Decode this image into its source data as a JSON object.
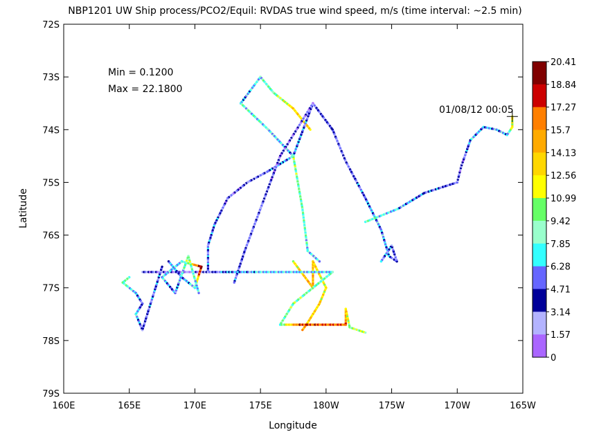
{
  "chart_data": {
    "type": "scatter",
    "title": "NBP1201 UW Ship process/PCO2/Equil: RVDAS true wind speed, m/s  (time interval: ~2.5 min)",
    "xlabel": "Longitude",
    "ylabel": "Latitude",
    "xlim": [
      160,
      195
    ],
    "ylim": [
      -79,
      -72
    ],
    "x_ticks": [
      "160E",
      "165E",
      "170E",
      "175E",
      "180W",
      "175W",
      "170W",
      "165W"
    ],
    "y_ticks": [
      "72S",
      "73S",
      "74S",
      "75S",
      "76S",
      "77S",
      "78S",
      "79S"
    ],
    "grid": false,
    "stats": {
      "min": "Min = 0.1200",
      "max": "Max = 22.1800"
    },
    "end_marker": {
      "label": "01/08/12 00:05",
      "lon": 194.2,
      "lat": -73.75
    },
    "colorbar": {
      "labels": [
        "20.41",
        "18.84",
        "17.27",
        "15.7",
        "14.13",
        "12.56",
        "10.99",
        "9.42",
        "7.85",
        "6.28",
        "4.71",
        "3.14",
        "1.57",
        "0"
      ],
      "colors": [
        "#800000",
        "#cc0000",
        "#ff7f00",
        "#ffaa00",
        "#ffd700",
        "#ffff00",
        "#66ff66",
        "#99ffcc",
        "#33ffff",
        "#6666ff",
        "#000099",
        "#b3b3ff",
        "#aa66ff"
      ]
    },
    "series": [
      {
        "values": [
          [
            173.5,
            -73.5,
            5.2
          ],
          [
            175.0,
            -73.0,
            7.9
          ],
          [
            176.0,
            -73.3,
            9.0
          ],
          [
            177.5,
            -73.6,
            12.8
          ],
          [
            178.8,
            -74.0,
            13.5
          ]
        ]
      },
      {
        "values": [
          [
            173.5,
            -73.5,
            8.2
          ],
          [
            175.6,
            -74.0,
            7.4
          ],
          [
            177.5,
            -74.5,
            6.0
          ],
          [
            179.0,
            -73.5,
            4.0
          ],
          [
            180.5,
            -74.0,
            4.2
          ],
          [
            181.5,
            -74.6,
            3.6
          ],
          [
            183.0,
            -75.3,
            5.2
          ],
          [
            184.2,
            -75.9,
            6.3
          ],
          [
            184.8,
            -76.4,
            5.5
          ],
          [
            185.4,
            -76.5,
            3.9
          ],
          [
            185.0,
            -76.2,
            4.5
          ],
          [
            184.2,
            -76.5,
            5.0
          ]
        ]
      },
      {
        "values": [
          [
            183.0,
            -75.75,
            8.9
          ],
          [
            185.5,
            -75.5,
            6.4
          ],
          [
            187.5,
            -75.2,
            4.8
          ],
          [
            190.0,
            -75.0,
            4.0
          ],
          [
            190.3,
            -74.7,
            2.0
          ],
          [
            191.0,
            -74.2,
            6.5
          ],
          [
            192.0,
            -73.95,
            5.6
          ],
          [
            193.0,
            -74.0,
            6.2
          ],
          [
            193.8,
            -74.1,
            6.0
          ],
          [
            194.2,
            -73.95,
            11.5
          ],
          [
            194.2,
            -73.75,
            12.0
          ]
        ]
      },
      {
        "values": [
          [
            177.5,
            -74.5,
            6.4
          ],
          [
            175.5,
            -74.8,
            4.2
          ],
          [
            174.0,
            -75.0,
            3.5
          ],
          [
            172.5,
            -75.3,
            3.0
          ],
          [
            171.5,
            -75.8,
            5.2
          ],
          [
            171.0,
            -76.2,
            4.8
          ],
          [
            171.0,
            -76.7,
            5.0
          ]
        ]
      },
      {
        "values": [
          [
            179.0,
            -73.5,
            3.0
          ],
          [
            176.5,
            -74.5,
            2.8
          ],
          [
            175.0,
            -75.5,
            4.0
          ],
          [
            173.8,
            -76.3,
            4.0
          ],
          [
            173.0,
            -76.9,
            5.0
          ]
        ]
      },
      {
        "values": [
          [
            177.5,
            -74.5,
            9.8
          ],
          [
            178.2,
            -75.5,
            8.5
          ],
          [
            178.6,
            -76.3,
            7.8
          ],
          [
            179.5,
            -76.5,
            6.5
          ]
        ]
      },
      {
        "values": [
          [
            177.5,
            -76.5,
            12.0
          ],
          [
            179.0,
            -77.0,
            15.0
          ],
          [
            179.0,
            -76.5,
            13.5
          ],
          [
            180.0,
            -77.0,
            12.0
          ],
          [
            179.5,
            -77.3,
            13.0
          ],
          [
            178.5,
            -77.7,
            14.0
          ],
          [
            178.2,
            -77.8,
            15.0
          ]
        ]
      },
      {
        "values": [
          [
            180.5,
            -76.7,
            8.0
          ],
          [
            177.5,
            -77.3,
            9.5
          ],
          [
            176.5,
            -77.7,
            8.7
          ],
          [
            178.0,
            -77.7,
            17.5
          ],
          [
            181.5,
            -77.7,
            16.5
          ],
          [
            181.5,
            -77.4,
            14.2
          ],
          [
            181.8,
            -77.75,
            9.9
          ],
          [
            183.0,
            -77.85,
            11.0
          ]
        ]
      },
      {
        "values": [
          [
            166.0,
            -76.7,
            3.5
          ],
          [
            169.5,
            -76.7,
            2.0
          ],
          [
            171.0,
            -76.7,
            4.0
          ],
          [
            172.5,
            -76.7,
            5.5
          ],
          [
            175.0,
            -76.7,
            6.5
          ],
          [
            178.0,
            -76.7,
            7.0
          ],
          [
            180.5,
            -76.7,
            6.8
          ]
        ]
      },
      {
        "values": [
          [
            168.0,
            -76.5,
            6.0
          ],
          [
            169.0,
            -76.8,
            4.8
          ],
          [
            170.0,
            -77.0,
            7.5
          ],
          [
            170.5,
            -76.6,
            20.5
          ],
          [
            169.0,
            -76.5,
            6.5
          ],
          [
            167.5,
            -76.8,
            7.0
          ],
          [
            168.5,
            -77.1,
            4.5
          ],
          [
            169.5,
            -76.4,
            10.0
          ],
          [
            170.3,
            -77.1,
            6.3
          ]
        ]
      },
      {
        "values": [
          [
            165.0,
            -76.8,
            8.5
          ],
          [
            164.5,
            -76.9,
            9.0
          ],
          [
            165.5,
            -77.1,
            6.2
          ],
          [
            166.0,
            -77.3,
            4.2
          ],
          [
            165.5,
            -77.5,
            6.5
          ],
          [
            166.0,
            -77.8,
            4.0
          ],
          [
            167.0,
            -77.0,
            5.0
          ],
          [
            167.5,
            -76.6,
            4.2
          ]
        ]
      }
    ]
  }
}
